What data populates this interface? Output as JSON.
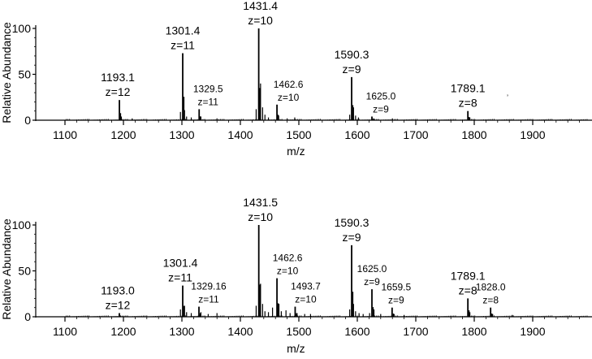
{
  "chart_data": [
    {
      "type": "line",
      "panel": "top",
      "xlabel": "m/z",
      "ylabel": "Relative Abundance",
      "xlim": [
        1100,
        2000
      ],
      "ylim": [
        0,
        100
      ],
      "x_ticks": [
        1100,
        1200,
        1300,
        1400,
        1500,
        1600,
        1700,
        1800,
        1900
      ],
      "y_ticks": [
        0,
        50,
        100
      ],
      "grid": false,
      "peaks": [
        {
          "mz": 1193.1,
          "intensity": 22,
          "label_mz": "1193.1",
          "label_z": "z=12"
        },
        {
          "mz": 1301.4,
          "intensity": 73,
          "label_mz": "1301.4",
          "label_z": "z=11"
        },
        {
          "mz": 1329.5,
          "intensity": 12,
          "label_mz": "1329.5",
          "label_z": "z=11"
        },
        {
          "mz": 1431.4,
          "intensity": 100,
          "label_mz": "1431.4",
          "label_z": "z=10"
        },
        {
          "mz": 1462.6,
          "intensity": 17,
          "label_mz": "1462.6",
          "label_z": "z=10"
        },
        {
          "mz": 1590.3,
          "intensity": 47,
          "label_mz": "1590.3",
          "label_z": "z=9"
        },
        {
          "mz": 1625.0,
          "intensity": 4,
          "label_mz": "1625.0",
          "label_z": "z=9"
        },
        {
          "mz": 1789.1,
          "intensity": 10,
          "label_mz": "1789.1",
          "label_z": "z=8"
        }
      ],
      "minor_peaks": [
        {
          "mz": 1196.5,
          "intensity": 4
        },
        {
          "mz": 1215.0,
          "intensity": 2
        },
        {
          "mz": 1297.5,
          "intensity": 9
        },
        {
          "mz": 1304.5,
          "intensity": 11
        },
        {
          "mz": 1308.0,
          "intensity": 4
        },
        {
          "mz": 1316.0,
          "intensity": 3
        },
        {
          "mz": 1332.5,
          "intensity": 4
        },
        {
          "mz": 1360.0,
          "intensity": 2
        },
        {
          "mz": 1427.0,
          "intensity": 12
        },
        {
          "mz": 1434.5,
          "intensity": 40
        },
        {
          "mz": 1438.0,
          "intensity": 14
        },
        {
          "mz": 1442.0,
          "intensity": 6
        },
        {
          "mz": 1448.0,
          "intensity": 3
        },
        {
          "mz": 1465.5,
          "intensity": 5
        },
        {
          "mz": 1480.0,
          "intensity": 2
        },
        {
          "mz": 1493.0,
          "intensity": 3
        },
        {
          "mz": 1587.0,
          "intensity": 6
        },
        {
          "mz": 1593.5,
          "intensity": 14
        },
        {
          "mz": 1597.0,
          "intensity": 5
        },
        {
          "mz": 1602.0,
          "intensity": 3
        },
        {
          "mz": 1628.0,
          "intensity": 2
        },
        {
          "mz": 1660.0,
          "intensity": 2
        },
        {
          "mz": 1792.5,
          "intensity": 3
        }
      ]
    },
    {
      "type": "line",
      "panel": "bottom",
      "xlabel": "m/z",
      "ylabel": "Relative Abundance",
      "xlim": [
        1100,
        2000
      ],
      "ylim": [
        0,
        100
      ],
      "x_ticks": [
        1100,
        1200,
        1300,
        1400,
        1500,
        1600,
        1700,
        1800,
        1900
      ],
      "y_ticks": [
        0,
        50,
        100
      ],
      "grid": false,
      "peaks": [
        {
          "mz": 1193.0,
          "intensity": 4,
          "label_mz": "1193.0",
          "label_z": "z=12"
        },
        {
          "mz": 1301.4,
          "intensity": 34,
          "label_mz": "1301.4",
          "label_z": "z=11"
        },
        {
          "mz": 1329.16,
          "intensity": 11,
          "label_mz": "1329.16",
          "label_z": "z=11"
        },
        {
          "mz": 1431.5,
          "intensity": 100,
          "label_mz": "1431.5",
          "label_z": "z=10"
        },
        {
          "mz": 1462.6,
          "intensity": 42,
          "label_mz": "1462.6",
          "label_z": "z=10"
        },
        {
          "mz": 1493.7,
          "intensity": 11,
          "label_mz": "1493.7",
          "label_z": "z=10"
        },
        {
          "mz": 1590.3,
          "intensity": 78,
          "label_mz": "1590.3",
          "label_z": "z=9"
        },
        {
          "mz": 1625.0,
          "intensity": 30,
          "label_mz": "1625.0",
          "label_z": "z=9"
        },
        {
          "mz": 1659.5,
          "intensity": 10,
          "label_mz": "1659.5",
          "label_z": "z=9"
        },
        {
          "mz": 1789.1,
          "intensity": 20,
          "label_mz": "1789.1",
          "label_z": "z=8"
        },
        {
          "mz": 1828.0,
          "intensity": 10,
          "label_mz": "1828.0",
          "label_z": "z=8"
        }
      ],
      "minor_peaks": [
        {
          "mz": 1297.5,
          "intensity": 8
        },
        {
          "mz": 1304.5,
          "intensity": 12
        },
        {
          "mz": 1308.0,
          "intensity": 5
        },
        {
          "mz": 1316.0,
          "intensity": 4
        },
        {
          "mz": 1332.5,
          "intensity": 5
        },
        {
          "mz": 1345.0,
          "intensity": 3
        },
        {
          "mz": 1360.0,
          "intensity": 4
        },
        {
          "mz": 1427.0,
          "intensity": 12
        },
        {
          "mz": 1434.5,
          "intensity": 36
        },
        {
          "mz": 1438.0,
          "intensity": 14
        },
        {
          "mz": 1442.0,
          "intensity": 6
        },
        {
          "mz": 1448.0,
          "intensity": 5
        },
        {
          "mz": 1455.0,
          "intensity": 10
        },
        {
          "mz": 1466.0,
          "intensity": 14
        },
        {
          "mz": 1470.0,
          "intensity": 6
        },
        {
          "mz": 1478.0,
          "intensity": 7
        },
        {
          "mz": 1485.0,
          "intensity": 4
        },
        {
          "mz": 1497.0,
          "intensity": 4
        },
        {
          "mz": 1510.0,
          "intensity": 3
        },
        {
          "mz": 1520.0,
          "intensity": 3
        },
        {
          "mz": 1587.0,
          "intensity": 8
        },
        {
          "mz": 1593.5,
          "intensity": 14
        },
        {
          "mz": 1597.0,
          "intensity": 6
        },
        {
          "mz": 1603.0,
          "intensity": 4
        },
        {
          "mz": 1610.0,
          "intensity": 3
        },
        {
          "mz": 1621.0,
          "intensity": 4
        },
        {
          "mz": 1628.5,
          "intensity": 8
        },
        {
          "mz": 1640.0,
          "intensity": 3
        },
        {
          "mz": 1663.0,
          "intensity": 3
        },
        {
          "mz": 1680.0,
          "intensity": 2
        },
        {
          "mz": 1792.5,
          "intensity": 5
        },
        {
          "mz": 1831.5,
          "intensity": 3
        },
        {
          "mz": 1865.0,
          "intensity": 2
        }
      ]
    }
  ],
  "stray_mark": "’"
}
